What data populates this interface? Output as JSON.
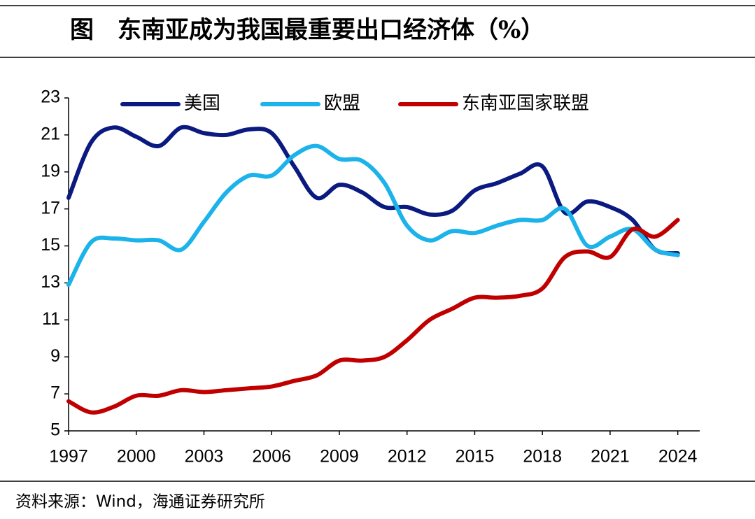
{
  "chart_data": {
    "type": "line",
    "title": "图　东南亚成为我国最重要出口经济体（%）",
    "source": "资料来源：Wind，海通证券研究所",
    "x": [
      1997,
      1998,
      1999,
      2000,
      2001,
      2002,
      2003,
      2004,
      2005,
      2006,
      2007,
      2008,
      2009,
      2010,
      2011,
      2012,
      2013,
      2014,
      2015,
      2016,
      2017,
      2018,
      2019,
      2020,
      2021,
      2022,
      2023,
      2024
    ],
    "series": [
      {
        "name": "美国",
        "color": "#0b1a80",
        "values": [
          17.6,
          20.6,
          21.4,
          20.9,
          20.4,
          21.4,
          21.1,
          21.0,
          21.3,
          21.1,
          19.3,
          17.6,
          18.3,
          17.9,
          17.1,
          17.1,
          16.7,
          16.9,
          18.0,
          18.4,
          18.9,
          19.3,
          16.8,
          17.4,
          17.1,
          16.4,
          14.8,
          14.6
        ]
      },
      {
        "name": "欧盟",
        "color": "#1bb3ea",
        "values": [
          12.9,
          15.2,
          15.4,
          15.3,
          15.3,
          14.8,
          16.3,
          17.9,
          18.8,
          18.8,
          19.9,
          20.4,
          19.7,
          19.6,
          18.4,
          16.1,
          15.3,
          15.8,
          15.7,
          16.1,
          16.4,
          16.4,
          17.0,
          15.0,
          15.5,
          15.9,
          14.8,
          14.5
        ]
      },
      {
        "name": "东南亚国家联盟",
        "color": "#c00000",
        "values": [
          6.6,
          6.0,
          6.3,
          6.9,
          6.9,
          7.2,
          7.1,
          7.2,
          7.3,
          7.4,
          7.7,
          8.0,
          8.8,
          8.8,
          9.0,
          9.9,
          11.0,
          11.6,
          12.2,
          12.2,
          12.3,
          12.7,
          14.4,
          14.7,
          14.4,
          15.9,
          15.5,
          16.4
        ]
      }
    ],
    "xlim": [
      1997,
      2024.6
    ],
    "xticks": [
      1997,
      2000,
      2003,
      2006,
      2009,
      2012,
      2015,
      2018,
      2021,
      2024
    ],
    "ylim": [
      5,
      23
    ],
    "yticks": [
      5,
      7,
      9,
      11,
      13,
      15,
      17,
      19,
      21,
      23
    ],
    "grid": false
  }
}
